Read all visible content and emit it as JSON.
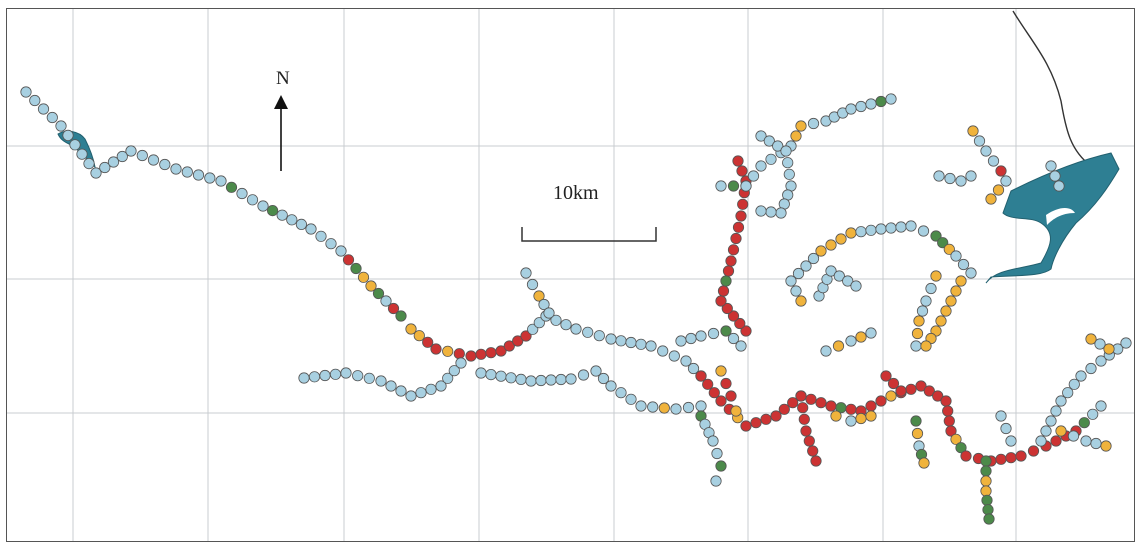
{
  "map": {
    "north_label": "N",
    "scale_label": "10km",
    "colors": {
      "blue": "#a8d0e1",
      "orange": "#f0b33c",
      "red": "#cc3333",
      "green": "#4c8a4a",
      "water": "#2e7f93",
      "grid": "#c9ccd0"
    },
    "legend_categories": [
      "blue",
      "orange",
      "red",
      "green"
    ]
  }
}
